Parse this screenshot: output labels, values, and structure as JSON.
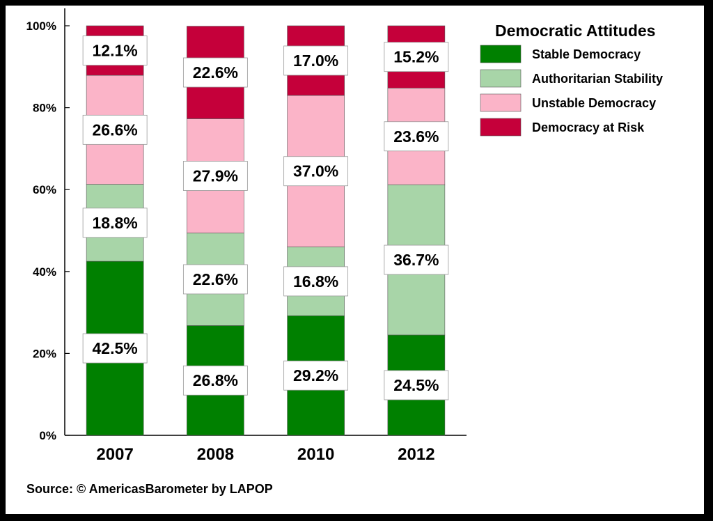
{
  "chart_data": {
    "type": "bar",
    "stacked": true,
    "categories": [
      "2007",
      "2008",
      "2010",
      "2012"
    ],
    "series": [
      {
        "name": "Stable Democracy",
        "color": "#008000",
        "values": [
          42.5,
          26.8,
          29.2,
          24.5
        ],
        "labels": [
          "42.5%",
          "26.8%",
          "29.2%",
          "24.5%"
        ]
      },
      {
        "name": "Authoritarian Stability",
        "color": "#a8d5a8",
        "values": [
          18.8,
          22.6,
          16.8,
          36.7
        ],
        "labels": [
          "18.8%",
          "22.6%",
          "16.8%",
          "36.7%"
        ]
      },
      {
        "name": "Unstable Democracy",
        "color": "#fbb4c8",
        "values": [
          26.6,
          27.9,
          37.0,
          23.6
        ],
        "labels": [
          "26.6%",
          "27.9%",
          "37.0%",
          "23.6%"
        ]
      },
      {
        "name": "Democracy at Risk",
        "color": "#c5003a",
        "values": [
          12.1,
          22.6,
          17.0,
          15.2
        ],
        "labels": [
          "12.1%",
          "22.6%",
          "17.0%",
          "15.2%"
        ]
      }
    ],
    "ylim": [
      0,
      100
    ],
    "yticks": [
      "0%",
      "20%",
      "40%",
      "60%",
      "80%",
      "100%"
    ],
    "legend_title": "Democratic Attitudes",
    "legend_position": "top-right",
    "grid": false
  },
  "source": "Source: © AmericasBarometer by LAPOP"
}
